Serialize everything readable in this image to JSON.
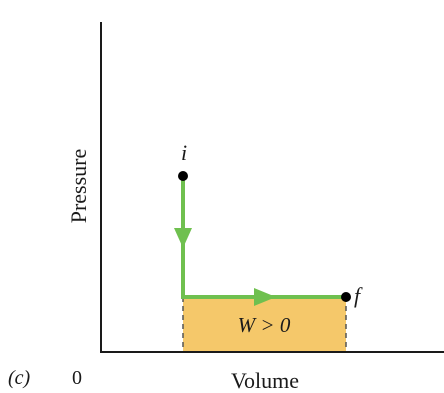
{
  "panel_label": "(c)",
  "axes": {
    "x_label": "Volume",
    "y_label": "Pressure",
    "origin_label": "0"
  },
  "states": {
    "initial": {
      "label": "i"
    },
    "final": {
      "label": "f"
    }
  },
  "work_label": "W > 0",
  "colors": {
    "path": "#6fc04f",
    "work_fill": "#f5c86a",
    "axis": "#1a1a1a",
    "point": "#000000",
    "dashed": "#555555"
  }
}
